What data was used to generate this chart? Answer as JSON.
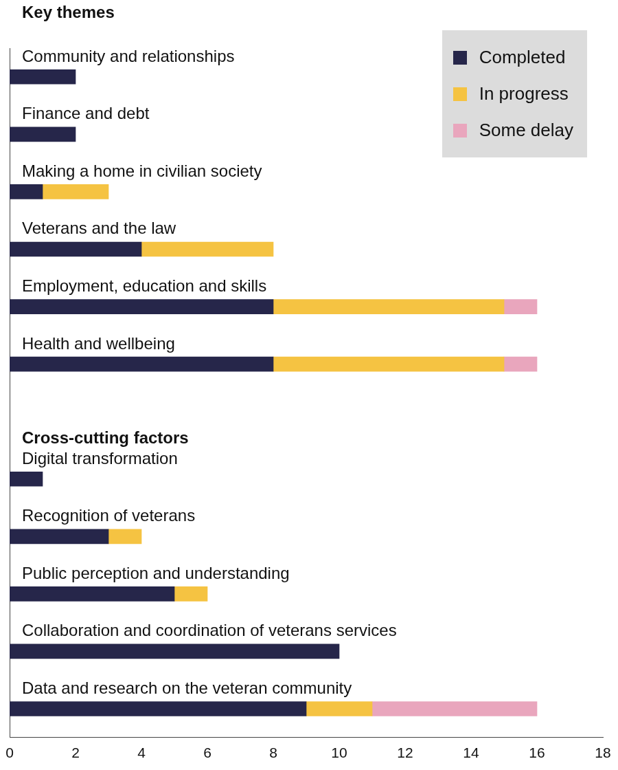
{
  "chart_data": {
    "type": "bar",
    "orientation": "horizontal",
    "stacked": true,
    "categories": [
      "Community and relationships",
      "Finance and debt",
      "Making a home in civilian society",
      "Veterans and the law",
      "Employment, education and skills",
      "Health and wellbeing",
      null,
      "Digital transformation",
      "Recognition of veterans",
      "Public perception and understanding",
      "Collaboration and coordination of veterans services",
      "Data and research on the veteran community"
    ],
    "series": [
      {
        "name": "Completed",
        "color": "#26264a",
        "values": [
          2,
          2,
          1,
          4,
          8,
          8,
          null,
          1,
          3,
          5,
          10,
          9
        ]
      },
      {
        "name": "In progress",
        "color": "#f5c342",
        "values": [
          null,
          null,
          2,
          4,
          7,
          7,
          null,
          null,
          1,
          1,
          null,
          2
        ]
      },
      {
        "name": "Some delay",
        "color": "#e9a6bd",
        "values": [
          null,
          null,
          null,
          null,
          1,
          1,
          null,
          null,
          null,
          null,
          null,
          5
        ]
      }
    ],
    "annotations": [
      "Key themes",
      "Cross-cutting factors"
    ],
    "xlim": [
      0,
      18
    ],
    "xticks": [
      0,
      2,
      4,
      6,
      8,
      10,
      12,
      14,
      16,
      18
    ],
    "grid": false,
    "legend": "top right"
  }
}
